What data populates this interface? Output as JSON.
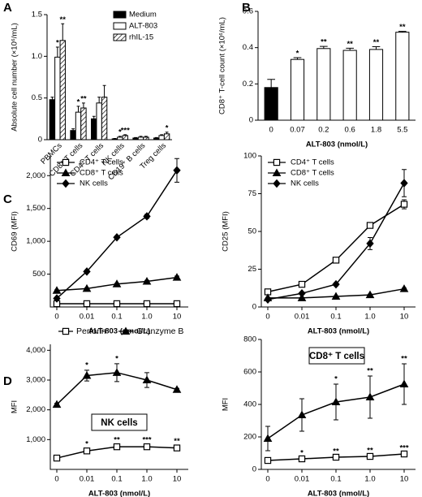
{
  "panel_labels": [
    "A",
    "B",
    "C",
    "D"
  ],
  "chart_data": [
    {
      "type": "bar",
      "y_label": "Absolute cell number (×10⁶/mL)",
      "categories": [
        "PBMCs",
        "CD8⁺ T cells",
        "CD4⁺ T cells",
        "NK cells",
        "CD19⁺ B cells",
        "Treg cells"
      ],
      "series": [
        {
          "name": "Medium",
          "color": "#000000",
          "hatch": false,
          "values": [
            0.48,
            0.11,
            0.25,
            0.01,
            0.02,
            0.02
          ],
          "errors": [
            0.03,
            0.02,
            0.03,
            0.005,
            0.005,
            0.005
          ],
          "significance": [
            null,
            null,
            null,
            null,
            null,
            null
          ]
        },
        {
          "name": "ALT-803",
          "color": "#ffffff",
          "hatch": false,
          "values": [
            0.99,
            0.33,
            0.44,
            0.03,
            0.03,
            0.05
          ],
          "errors": [
            0.12,
            0.07,
            0.07,
            0.01,
            0.01,
            0.01
          ],
          "significance": [
            "*",
            "*",
            null,
            "*",
            null,
            null
          ]
        },
        {
          "name": "rhIL-15",
          "color": "#ffffff",
          "hatch": true,
          "values": [
            1.19,
            0.38,
            0.51,
            0.05,
            0.03,
            0.07
          ],
          "errors": [
            0.2,
            0.06,
            0.14,
            0.01,
            0.01,
            0.02
          ],
          "significance": [
            "**",
            "**",
            null,
            "***",
            null,
            "*"
          ]
        }
      ],
      "ylim": [
        0,
        1.5
      ],
      "yticks": [
        0,
        0.5,
        {
          "value": 1,
          "label": "1.0"
        },
        1.5
      ],
      "legend": "upper right"
    },
    {
      "type": "bar",
      "y_label": "CD8⁺ T-cell count (×10⁶/mL)",
      "x_label": "ALT-803 (nmol/L)",
      "categories": [
        "0",
        "0.07",
        "0.2",
        "0.6",
        "1.8",
        "5.5"
      ],
      "values": [
        0.18,
        0.335,
        0.395,
        0.385,
        0.39,
        0.485
      ],
      "errors": [
        0.045,
        0.01,
        0.012,
        0.012,
        0.015,
        0.005
      ],
      "colors": [
        "#000000",
        "#ffffff",
        "#ffffff",
        "#ffffff",
        "#ffffff",
        "#ffffff"
      ],
      "significance": [
        null,
        "*",
        "**",
        "**",
        "**",
        "**"
      ],
      "ylim": [
        0,
        0.6
      ],
      "yticks": [
        0,
        0.2,
        0.4,
        0.6
      ]
    },
    {
      "type": "line",
      "y_label": "CD69 (MFI)",
      "x_label": "ALT-803 (nmol/L)",
      "categories": [
        "0",
        "0.01",
        "0.1",
        "1.0",
        "10"
      ],
      "series": [
        {
          "name": "CD4⁺ T cells",
          "marker": "square",
          "filled": false,
          "values": [
            50,
            50,
            50,
            50,
            50
          ],
          "errors": [
            10,
            10,
            10,
            10,
            10
          ]
        },
        {
          "name": "CD8⁺ T cells",
          "marker": "triangle",
          "filled": true,
          "values": [
            250,
            280,
            350,
            390,
            450
          ],
          "errors": [
            10,
            10,
            10,
            15,
            20
          ]
        },
        {
          "name": "NK cells",
          "marker": "diamond",
          "filled": true,
          "values": [
            130,
            540,
            1060,
            1380,
            2080
          ],
          "errors": [
            10,
            20,
            20,
            30,
            180
          ]
        }
      ],
      "ylim": [
        0,
        2300
      ],
      "yticks": [
        500,
        {
          "value": 1000,
          "label": "1,000"
        },
        {
          "value": 1500,
          "label": "1,500"
        },
        {
          "value": 2000,
          "label": "2,000"
        }
      ],
      "legend": "upper left"
    },
    {
      "type": "line",
      "y_label": "CD25 (MFI)",
      "x_label": "ALT-803 (nmol/L)",
      "categories": [
        "0",
        "0.01",
        "0.1",
        "1.0",
        "10"
      ],
      "series": [
        {
          "name": "CD4⁺ T cells",
          "marker": "square",
          "filled": false,
          "values": [
            10,
            15,
            31,
            54,
            68
          ],
          "errors": [
            0.5,
            0.5,
            1,
            1.5,
            3
          ]
        },
        {
          "name": "CD8⁺ T cells",
          "marker": "triangle",
          "filled": true,
          "values": [
            6,
            6,
            7,
            8,
            12
          ],
          "errors": [
            0.3,
            0.3,
            0.3,
            0.5,
            0.5
          ]
        },
        {
          "name": "NK cells",
          "marker": "diamond",
          "filled": true,
          "values": [
            5,
            9,
            15,
            42,
            82
          ],
          "errors": [
            0.3,
            0.5,
            1,
            4,
            9
          ]
        }
      ],
      "ylim": [
        0,
        100
      ],
      "yticks": [
        0,
        25,
        50,
        75,
        100
      ],
      "legend": "upper left"
    },
    {
      "type": "line",
      "y_label": "MFI",
      "x_label": "ALT-803 (nmol/L)",
      "categories": [
        "0",
        "0.01",
        "0.1",
        "1.0",
        "10"
      ],
      "box_label": "NK cells",
      "series": [
        {
          "name": "Perforin",
          "marker": "square",
          "filled": false,
          "values": [
            380,
            620,
            760,
            760,
            720
          ],
          "errors": [
            30,
            60,
            60,
            60,
            60
          ],
          "significance": [
            null,
            "*",
            "**",
            "***",
            "**"
          ]
        },
        {
          "name": "Granzyme B",
          "marker": "triangle",
          "filled": true,
          "values": [
            2180,
            3150,
            3250,
            3000,
            2680
          ],
          "errors": [
            40,
            180,
            300,
            250,
            40
          ],
          "significance": [
            null,
            "*",
            "*",
            null,
            null
          ]
        }
      ],
      "ylim": [
        0,
        4200
      ],
      "yticks": [
        {
          "value": 1000,
          "label": "1,000"
        },
        {
          "value": 2000,
          "label": "2,000"
        },
        {
          "value": 3000,
          "label": "3,000"
        },
        {
          "value": 4000,
          "label": "4,000"
        }
      ],
      "legend": "top"
    },
    {
      "type": "line",
      "y_label": "MFI",
      "x_label": "ALT-803 (nmol/L)",
      "categories": [
        "0",
        "0.01",
        "0.1",
        "1.0",
        "10"
      ],
      "box_label": "CD8⁺ T cells",
      "series": [
        {
          "name": "Perforin",
          "marker": "square",
          "filled": false,
          "values": [
            55,
            65,
            75,
            80,
            95
          ],
          "errors": [
            5,
            5,
            5,
            5,
            5
          ],
          "significance": [
            null,
            "*",
            "**",
            "**",
            "***"
          ]
        },
        {
          "name": "Granzyme B",
          "marker": "triangle",
          "filled": true,
          "values": [
            190,
            335,
            415,
            445,
            525
          ],
          "errors": [
            75,
            100,
            110,
            130,
            125
          ],
          "significance": [
            null,
            null,
            "*",
            "**",
            "**"
          ]
        }
      ],
      "ylim": [
        0,
        800
      ],
      "yticks": [
        0,
        200,
        400,
        600,
        800
      ]
    }
  ]
}
